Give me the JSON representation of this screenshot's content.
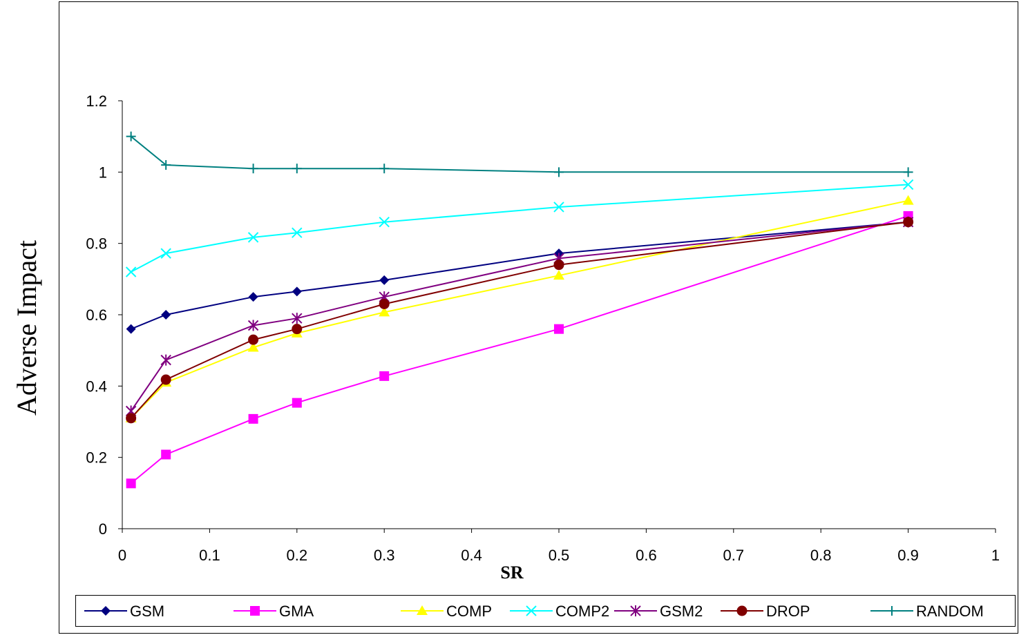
{
  "chart_data": {
    "type": "line",
    "xlabel": "SR",
    "ylabel": "Adverse Impact",
    "xlim": [
      0,
      1
    ],
    "ylim": [
      0,
      1.2
    ],
    "xticks": [
      "0",
      "0.1",
      "0.2",
      "0.3",
      "0.4",
      "0.5",
      "0.6",
      "0.7",
      "0.8",
      "0.9",
      "1"
    ],
    "yticks": [
      "0",
      "0.2",
      "0.4",
      "0.6",
      "0.8",
      "1",
      "1.2"
    ],
    "grid": false,
    "legend_position": "bottom",
    "x": [
      0.01,
      0.05,
      0.15,
      0.2,
      0.3,
      0.5,
      0.9
    ],
    "series": [
      {
        "name": "GSM",
        "color": "#000080",
        "marker": "diamond",
        "values": [
          0.56,
          0.6,
          0.65,
          0.665,
          0.697,
          0.772,
          0.86
        ]
      },
      {
        "name": "GMA",
        "color": "#FF00FF",
        "marker": "square",
        "values": [
          0.127,
          0.208,
          0.308,
          0.353,
          0.428,
          0.56,
          0.877
        ]
      },
      {
        "name": "COMP",
        "color": "#FFFF00",
        "marker": "triangle",
        "values": [
          0.31,
          0.41,
          0.508,
          0.548,
          0.607,
          0.71,
          0.92
        ]
      },
      {
        "name": "COMP2",
        "color": "#00FFFF",
        "marker": "x",
        "values": [
          0.72,
          0.772,
          0.817,
          0.83,
          0.86,
          0.902,
          0.965
        ]
      },
      {
        "name": "GSM2",
        "color": "#800080",
        "marker": "star",
        "values": [
          0.33,
          0.473,
          0.57,
          0.59,
          0.65,
          0.758,
          0.86
        ]
      },
      {
        "name": "DROP",
        "color": "#800000",
        "marker": "circle",
        "values": [
          0.31,
          0.418,
          0.53,
          0.56,
          0.63,
          0.74,
          0.86
        ]
      },
      {
        "name": "RANDOM",
        "color": "#008080",
        "marker": "plus",
        "values": [
          1.1,
          1.02,
          1.01,
          1.01,
          1.01,
          1.0,
          1.0
        ]
      }
    ]
  }
}
